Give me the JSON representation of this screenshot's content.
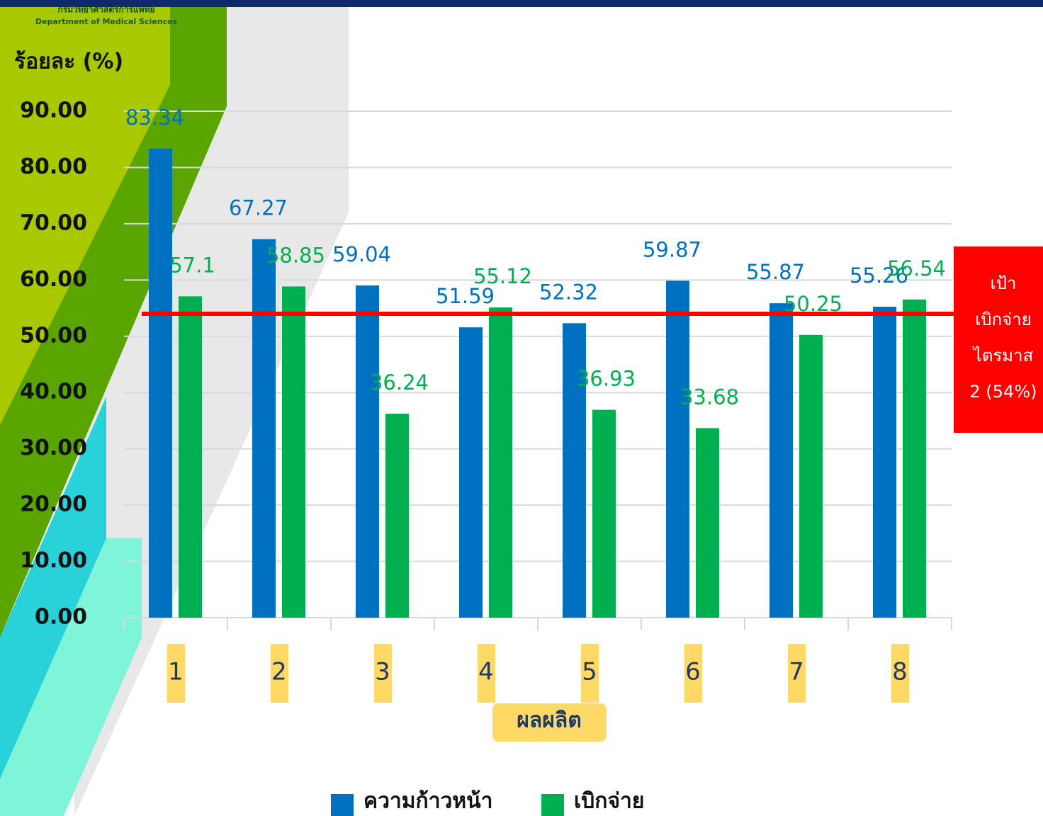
{
  "header": {
    "org_thai": "กรมวิทยาศาสตร์การแพทย์",
    "org_en": "Department of Medical Sciences"
  },
  "chart_data": {
    "type": "bar",
    "y_label": "ร้อยละ (%)",
    "x_label": "ผลผลิต",
    "categories": [
      "1",
      "2",
      "3",
      "4",
      "5",
      "6",
      "7",
      "8"
    ],
    "series": [
      {
        "name": "ความก้าวหน้า",
        "color": "#0070c0",
        "values": [
          83.34,
          67.27,
          59.04,
          51.59,
          52.32,
          59.87,
          55.87,
          55.26
        ]
      },
      {
        "name": "เบิกจ่าย",
        "color": "#00b050",
        "values": [
          57.1,
          58.85,
          36.24,
          55.12,
          36.93,
          33.68,
          50.25,
          56.54
        ]
      }
    ],
    "ylim": [
      0,
      90
    ],
    "yticks": [
      {
        "value": 0,
        "label": "0.00"
      },
      {
        "value": 10,
        "label": "10.00"
      },
      {
        "value": 20,
        "label": "20.00"
      },
      {
        "value": 30,
        "label": "30.00"
      },
      {
        "value": 40,
        "label": "40.00"
      },
      {
        "value": 50,
        "label": "50.00"
      },
      {
        "value": 60,
        "label": "60.00"
      },
      {
        "value": 70,
        "label": "70.00"
      },
      {
        "value": 80,
        "label": "80.00"
      },
      {
        "value": 90,
        "label": "90.00"
      }
    ],
    "grid": true,
    "target": {
      "value": 54,
      "color": "#ff0000",
      "label_lines": [
        "เป้า",
        "เบิกจ่าย",
        "ไตรมาส",
        "2 (54%)"
      ]
    }
  }
}
